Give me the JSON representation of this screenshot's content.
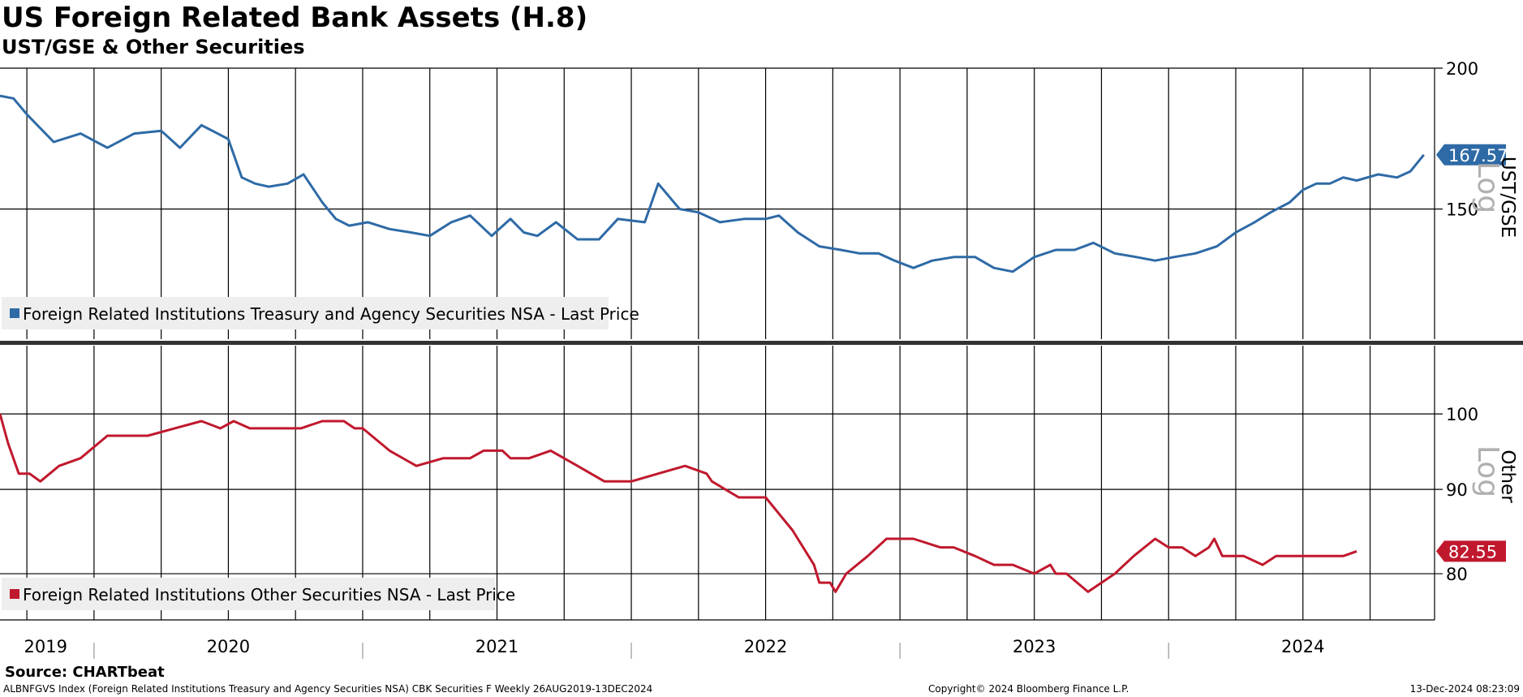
{
  "header": {
    "title": "US Foreign Related Bank Assets (H.8)",
    "subtitle": "UST/GSE & Other Securities"
  },
  "footer": {
    "source": "Source: CHARTbeat",
    "ticker_description": "ALBNFGVS Index (Foreign Related Institutions Treasury and Agency Securities NSA) CBK Securities F  Weekly 26AUG2019-13DEC2024",
    "copyright": "Copyright© 2024 Bloomberg Finance L.P.",
    "timestamp": "13-Dec-2024 08:23:09"
  },
  "colors": {
    "ust_series": "#2e6aa6",
    "other_series": "#c0182d",
    "grid": "#000000",
    "legend_bg": "#eeeeee"
  },
  "chart_data": [
    {
      "type": "line",
      "panel": "top",
      "axis_title": "UST/GSE",
      "scale": "log",
      "scale_label": "Log",
      "ylim": [
        115,
        200
      ],
      "y_ticks": [
        150,
        200
      ],
      "y_tick_labels": [
        "150",
        "200"
      ],
      "x_labels": [
        "2019",
        "2020",
        "2021",
        "2022",
        "2023",
        "2024"
      ],
      "last_value_label": "167.57",
      "legend": "Foreign Related Institutions Treasury and Agency Securities NSA - Last Price",
      "series": [
        {
          "name": "Foreign Related Institutions Treasury and Agency Securities NSA - Last Price",
          "color": "#2e6aa6",
          "x": [
            2019.65,
            2019.7,
            2019.75,
            2019.85,
            2019.95,
            2020.05,
            2020.15,
            2020.25,
            2020.32,
            2020.4,
            2020.46,
            2020.5,
            2020.55,
            2020.6,
            2020.65,
            2020.72,
            2020.78,
            2020.85,
            2020.9,
            2020.95,
            2021.02,
            2021.1,
            2021.18,
            2021.25,
            2021.33,
            2021.4,
            2021.48,
            2021.55,
            2021.6,
            2021.65,
            2021.72,
            2021.8,
            2021.88,
            2021.95,
            2022.05,
            2022.1,
            2022.18,
            2022.25,
            2022.33,
            2022.42,
            2022.5,
            2022.55,
            2022.62,
            2022.7,
            2022.78,
            2022.85,
            2022.92,
            2022.98,
            2023.05,
            2023.12,
            2023.2,
            2023.28,
            2023.35,
            2023.42,
            2023.5,
            2023.58,
            2023.65,
            2023.72,
            2023.8,
            2023.88,
            2023.95,
            2024.02,
            2024.1,
            2024.18,
            2024.25,
            2024.32,
            2024.38,
            2024.45,
            2024.5,
            2024.55,
            2024.6,
            2024.65,
            2024.7,
            2024.78,
            2024.85,
            2024.9,
            2024.95
          ],
          "values": [
            189,
            188,
            182,
            172,
            175,
            170,
            175,
            176,
            170,
            178,
            175,
            173,
            160,
            158,
            157,
            158,
            161,
            152,
            147,
            145,
            146,
            144,
            143,
            142,
            146,
            148,
            142,
            147,
            143,
            142,
            146,
            141,
            141,
            147,
            146,
            158,
            150,
            149,
            146,
            147,
            147,
            148,
            143,
            139,
            138,
            137,
            137,
            135,
            133,
            135,
            136,
            136,
            133,
            132,
            136,
            138,
            138,
            140,
            137,
            136,
            135,
            136,
            137,
            139,
            143,
            146,
            149,
            152,
            156,
            158,
            158,
            160,
            159,
            161,
            160,
            162,
            167.57
          ]
        }
      ]
    },
    {
      "type": "line",
      "panel": "bottom",
      "axis_title": "Other",
      "scale": "log",
      "scale_label": "Log",
      "ylim": [
        75,
        110
      ],
      "y_ticks": [
        80,
        90,
        100
      ],
      "y_tick_labels": [
        "80",
        "90",
        "100"
      ],
      "last_value_label": "82.55",
      "legend": "Foreign Related Institutions Other Securities NSA - Last Price",
      "series": [
        {
          "name": "Foreign Related Institutions Other Securities NSA - Last Price",
          "color": "#c0182d",
          "x": [
            2019.65,
            2019.68,
            2019.72,
            2019.76,
            2019.8,
            2019.87,
            2019.95,
            2020.05,
            2020.12,
            2020.2,
            2020.3,
            2020.4,
            2020.47,
            2020.52,
            2020.58,
            2020.64,
            2020.7,
            2020.77,
            2020.85,
            2020.93,
            2020.97,
            2021.0,
            2021.1,
            2021.2,
            2021.3,
            2021.4,
            2021.45,
            2021.52,
            2021.55,
            2021.62,
            2021.7,
            2021.8,
            2021.9,
            2022.0,
            2022.1,
            2022.2,
            2022.28,
            2022.3,
            2022.4,
            2022.5,
            2022.6,
            2022.68,
            2022.7,
            2022.74,
            2022.76,
            2022.8,
            2022.88,
            2022.95,
            2023.05,
            2023.15,
            2023.2,
            2023.28,
            2023.35,
            2023.42,
            2023.5,
            2023.56,
            2023.58,
            2023.62,
            2023.7,
            2023.8,
            2023.87,
            2023.95,
            2024.0,
            2024.05,
            2024.1,
            2024.15,
            2024.17,
            2024.2,
            2024.28,
            2024.35,
            2024.4,
            2024.45,
            2024.5,
            2024.55,
            2024.6,
            2024.65,
            2024.7
          ],
          "values": [
            100,
            96,
            92,
            92,
            91,
            93,
            94,
            97,
            97,
            97,
            98,
            99,
            98,
            99,
            98,
            98,
            98,
            98,
            99,
            99,
            98,
            98,
            95,
            93,
            94,
            94,
            95,
            95,
            94,
            94,
            95,
            93,
            91,
            91,
            92,
            93,
            92,
            91,
            89,
            89,
            85,
            81,
            79,
            79,
            78,
            80,
            82,
            84,
            84,
            83,
            83,
            82,
            81,
            81,
            80,
            81,
            80,
            80,
            78,
            80,
            82,
            84,
            83,
            83,
            82,
            83,
            84,
            82,
            82,
            81,
            82,
            82,
            82,
            82,
            82,
            82,
            82.55
          ]
        }
      ]
    }
  ]
}
